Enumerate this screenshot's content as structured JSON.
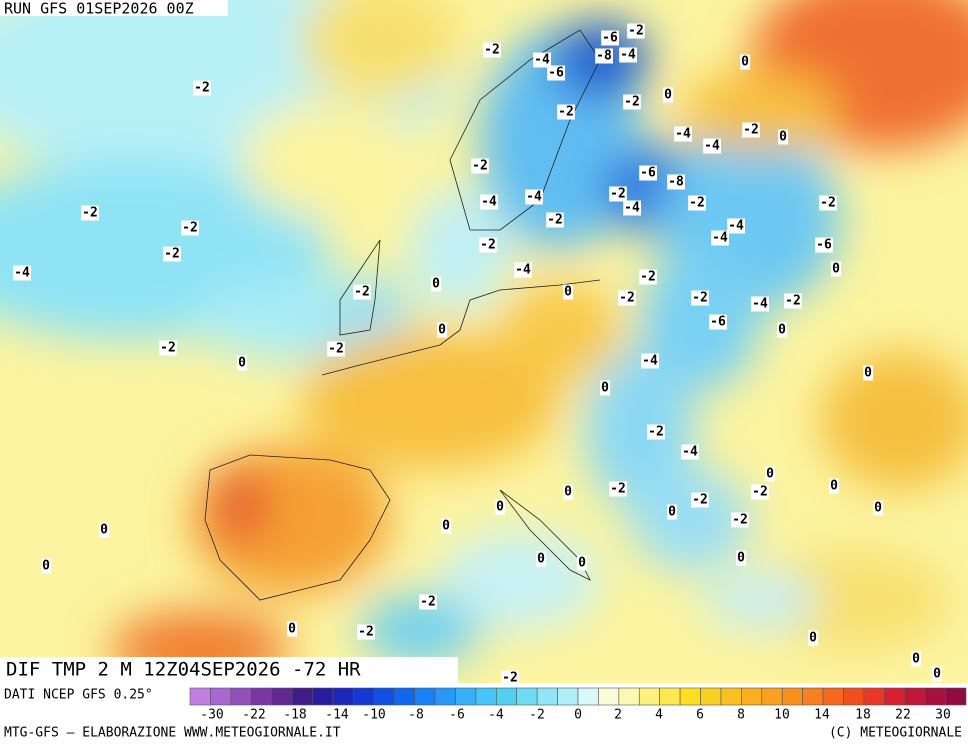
{
  "header": {
    "run": "RUN GFS 01SEP2026 00Z"
  },
  "title": "DIF TMP 2 M 12Z04SEP2026 -72 HR",
  "source": "DATI NCEP GFS 0.25°",
  "colorbar": {
    "colors": [
      "#c080e0",
      "#a868d0",
      "#9050b8",
      "#7838a0",
      "#602890",
      "#401c88",
      "#2a1ca0",
      "#1c28b8",
      "#1438d0",
      "#1050e0",
      "#1068f0",
      "#1a80f8",
      "#2898f8",
      "#38b0f8",
      "#48c4f8",
      "#50d0f0",
      "#70dcf4",
      "#90e6f6",
      "#b0eef8",
      "#d8f8fa",
      "#f8fcd8",
      "#fcf8b0",
      "#fcf080",
      "#fce850",
      "#fce020",
      "#f8d020",
      "#f8c020",
      "#f8b020",
      "#f8a020",
      "#f89020",
      "#f88020",
      "#f46820",
      "#f05020",
      "#e83828",
      "#d82030",
      "#c01838",
      "#a81040",
      "#900c40"
    ],
    "labels": [
      "-30",
      "-22",
      "-18",
      "-14",
      "-10",
      "-8",
      "-6",
      "-4",
      "-2",
      "0",
      "2",
      "4",
      "6",
      "8",
      "10",
      "14",
      "18",
      "22",
      "30"
    ]
  },
  "footer": {
    "left": "MTG-GFS — ELABORAZIONE WWW.METEOGIORNALE.IT",
    "right": "(C) METEOGIORNALE"
  },
  "map_labels": [
    "-2",
    "-4",
    "-6",
    "-6",
    "-2",
    "-8",
    "-4",
    "0",
    "-2",
    "0",
    "-2",
    "-2",
    "-4",
    "-2",
    "0",
    "-4",
    "-2",
    "-6",
    "-8",
    "-2",
    "-4",
    "-4",
    "-4",
    "-2",
    "-2",
    "-2",
    "-2",
    "-2",
    "-4",
    "-4",
    "-2",
    "-2",
    "-6",
    "-4",
    "0",
    "-4",
    "-2",
    "0",
    "-2",
    "0",
    "-2",
    "-2",
    "-4",
    "-2",
    "-6",
    "0",
    "0",
    "-2",
    "-2",
    "-4",
    "0",
    "0",
    "0",
    "-2",
    "-4",
    "0",
    "0",
    "0",
    "-2",
    "-2",
    "-2",
    "0",
    "0",
    "0",
    "-2",
    "0",
    "0",
    "0",
    "0",
    "0",
    "0",
    "-2",
    "0",
    "-2",
    "0",
    "0",
    "0",
    "-2"
  ]
}
